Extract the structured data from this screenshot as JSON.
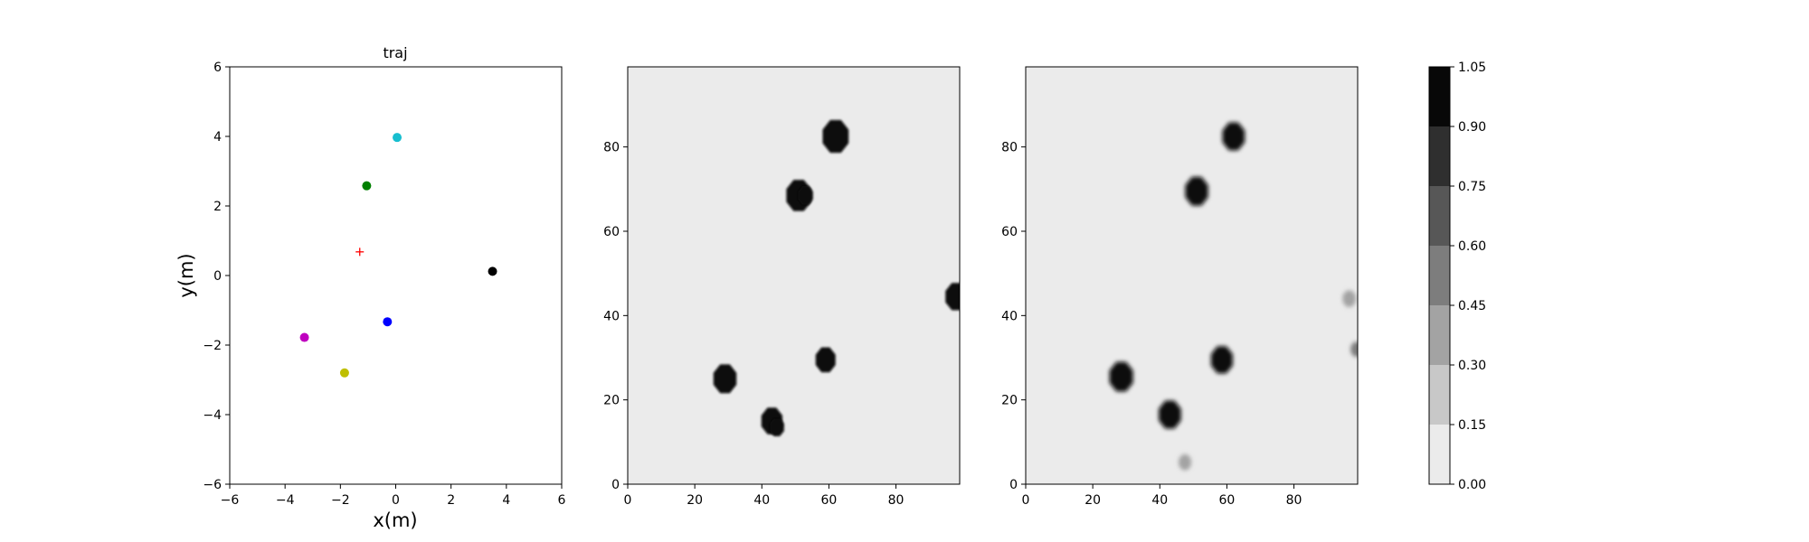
{
  "chart_data": [
    {
      "type": "scatter",
      "title": "traj",
      "xlabel": "x(m)",
      "ylabel": "y(m)",
      "xlim": [
        -6,
        6
      ],
      "ylim": [
        -6,
        6
      ],
      "xticks": [
        "−6",
        "−4",
        "−2",
        "0",
        "2",
        "4",
        "6"
      ],
      "yticks": [
        "−6",
        "−4",
        "−2",
        "0",
        "2",
        "4",
        "6"
      ],
      "points": [
        {
          "x": 0.05,
          "y": 3.97,
          "color": "#17becf",
          "marker": "circle"
        },
        {
          "x": -1.05,
          "y": 2.58,
          "color": "#008000",
          "marker": "circle"
        },
        {
          "x": 3.5,
          "y": 0.12,
          "color": "#000000",
          "marker": "circle"
        },
        {
          "x": -0.3,
          "y": -1.33,
          "color": "#0000ff",
          "marker": "circle"
        },
        {
          "x": -3.3,
          "y": -1.78,
          "color": "#bf00bf",
          "marker": "circle"
        },
        {
          "x": -1.85,
          "y": -2.8,
          "color": "#bfbf00",
          "marker": "circle"
        },
        {
          "x": -1.3,
          "y": 0.68,
          "color": "#ff0000",
          "marker": "plus"
        }
      ]
    },
    {
      "type": "heatmap",
      "title": "",
      "xlim": [
        0,
        99
      ],
      "ylim": [
        0,
        99
      ],
      "xticks": [
        "0",
        "20",
        "40",
        "60",
        "80"
      ],
      "yticks": [
        "0",
        "20",
        "40",
        "60",
        "80"
      ],
      "background_value": 0.0,
      "blobs": [
        {
          "x": 62,
          "y": 82.5,
          "r": 4.2,
          "value": 1.0
        },
        {
          "x": 51,
          "y": 68.5,
          "r": 4.0,
          "value": 1.0
        },
        {
          "x": 53,
          "y": 68.5,
          "r": 2.4,
          "value": 1.0
        },
        {
          "x": 98,
          "y": 44.5,
          "r": 3.5,
          "value": 1.0
        },
        {
          "x": 59,
          "y": 29.5,
          "r": 3.2,
          "value": 1.0
        },
        {
          "x": 29,
          "y": 25.0,
          "r": 3.7,
          "value": 1.0
        },
        {
          "x": 43,
          "y": 15.0,
          "r": 3.4,
          "value": 1.0
        },
        {
          "x": 44.5,
          "y": 13.5,
          "r": 2.3,
          "value": 1.0
        }
      ]
    },
    {
      "type": "heatmap",
      "title": "",
      "xlim": [
        0,
        99
      ],
      "ylim": [
        0,
        99
      ],
      "xticks": [
        "0",
        "20",
        "40",
        "60",
        "80"
      ],
      "yticks": [
        "0",
        "20",
        "40",
        "60",
        "80"
      ],
      "background_value": 0.0,
      "blobs": [
        {
          "x": 62,
          "y": 82.5,
          "r": 3.6,
          "value": 1.0
        },
        {
          "x": 51,
          "y": 69.5,
          "r": 3.7,
          "value": 1.0
        },
        {
          "x": 58.5,
          "y": 29.5,
          "r": 3.5,
          "value": 1.0
        },
        {
          "x": 28.5,
          "y": 25.5,
          "r": 3.8,
          "value": 1.0
        },
        {
          "x": 43,
          "y": 16.5,
          "r": 3.6,
          "value": 1.0
        },
        {
          "x": 47.5,
          "y": 5.2,
          "r": 2.0,
          "value": 0.35
        },
        {
          "x": 96.5,
          "y": 44,
          "r": 2.1,
          "value": 0.3
        },
        {
          "x": 98.7,
          "y": 32,
          "r": 1.9,
          "value": 0.55
        }
      ]
    },
    {
      "type": "colorbar",
      "levels": [
        "0.00",
        "0.15",
        "0.30",
        "0.45",
        "0.60",
        "0.75",
        "0.90",
        "1.05"
      ],
      "colors": [
        "#ebebeb",
        "#c8c8c8",
        "#a3a3a3",
        "#7d7d7d",
        "#575757",
        "#2f2f2f",
        "#080808"
      ]
    }
  ]
}
